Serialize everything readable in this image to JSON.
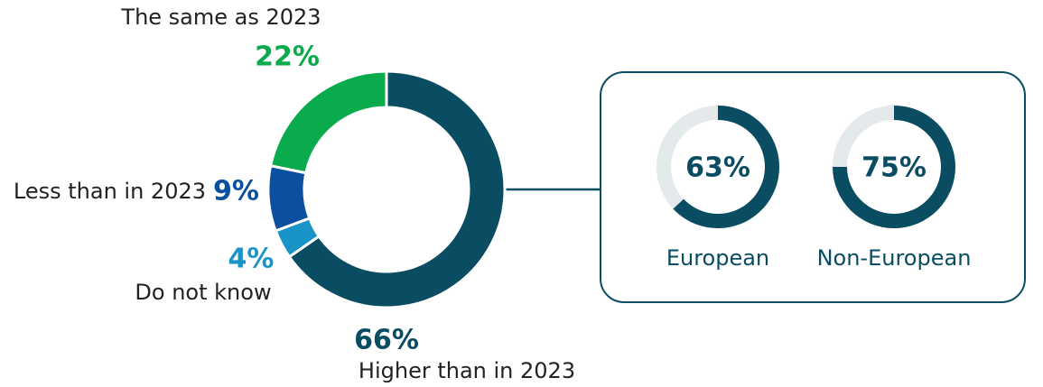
{
  "chart_data": [
    {
      "type": "donut",
      "categories": [
        "Higher than in 2023",
        "Do not know",
        "Less than in 2023",
        "The same as 2023"
      ],
      "values": [
        66,
        4,
        9,
        22
      ],
      "value_labels": [
        "66%",
        "4%",
        "9%",
        "22%"
      ],
      "colors": [
        "#0a4d63",
        "#1a93c6",
        "#0a4fa0",
        "#0aab4d"
      ]
    },
    {
      "type": "progress-donut",
      "categories": [
        "European",
        "Non-European"
      ],
      "values": [
        63,
        75
      ],
      "value_labels": [
        "63%",
        "75%"
      ],
      "color": "#0a4d63"
    }
  ]
}
